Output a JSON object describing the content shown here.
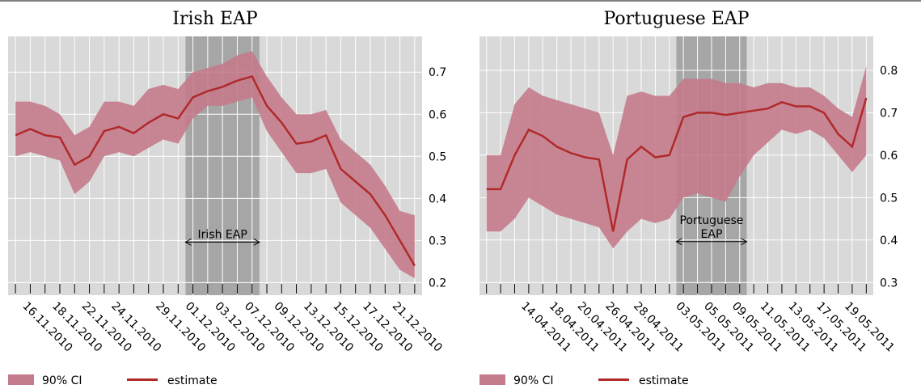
{
  "chart_data": [
    {
      "type": "line",
      "title": "Irish EAP",
      "categories": [
        null,
        "16.11.2010",
        null,
        "18.11.2010",
        null,
        "22.11.2010",
        null,
        "24.11.2010",
        null,
        null,
        "29.11.2010",
        null,
        "01.12.2010",
        null,
        "03.12.2010",
        null,
        "07.12.2010",
        null,
        "09.12.2010",
        null,
        "13.12.2010",
        null,
        "15.12.2010",
        null,
        "17.12.2010",
        null,
        "21.12.2010",
        null
      ],
      "series": [
        {
          "name": "90% CI",
          "color": "#c47b8c",
          "upper": [
            0.63,
            0.63,
            0.62,
            0.6,
            0.55,
            0.57,
            0.63,
            0.63,
            0.62,
            0.66,
            0.67,
            0.66,
            0.7,
            0.71,
            0.72,
            0.74,
            0.75,
            0.69,
            0.64,
            0.6,
            0.6,
            0.61,
            0.54,
            0.51,
            0.48,
            0.43,
            0.37,
            0.36
          ],
          "lower": [
            0.5,
            0.51,
            0.5,
            0.49,
            0.41,
            0.44,
            0.5,
            0.51,
            0.5,
            0.52,
            0.54,
            0.53,
            0.59,
            0.62,
            0.62,
            0.63,
            0.64,
            0.56,
            0.51,
            0.46,
            0.46,
            0.47,
            0.39,
            0.36,
            0.33,
            0.28,
            0.23,
            0.21
          ]
        },
        {
          "name": "estimate",
          "color": "#b02a2a",
          "values": [
            0.55,
            0.565,
            0.55,
            0.545,
            0.48,
            0.5,
            0.56,
            0.57,
            0.555,
            0.58,
            0.6,
            0.59,
            0.64,
            0.655,
            0.665,
            0.68,
            0.69,
            0.62,
            0.58,
            0.53,
            0.535,
            0.55,
            0.47,
            0.44,
            0.41,
            0.36,
            0.3,
            0.24
          ]
        }
      ],
      "ylim": [
        0.17,
        0.785
      ],
      "yticks": [
        0.2,
        0.3,
        0.4,
        0.5,
        0.6,
        0.7
      ],
      "grid": true,
      "annotation": {
        "lines": [
          "Irish EAP"
        ],
        "span": [
          "01.12.2010",
          "07.12.2010"
        ]
      }
    },
    {
      "type": "line",
      "title": "Portuguese EAP",
      "categories": [
        null,
        null,
        null,
        "14.04.2011",
        null,
        "18.04.2011",
        null,
        "20.04.2011",
        null,
        "26.04.2011",
        null,
        "28.04.2011",
        null,
        null,
        "03.05.2011",
        null,
        "05.05.2011",
        null,
        "09.05.2011",
        null,
        "11.05.2011",
        null,
        "13.05.2011",
        null,
        "17.05.2011",
        null,
        "19.05.2011",
        null
      ],
      "series": [
        {
          "name": "90% CI",
          "color": "#c47b8c",
          "upper": [
            0.6,
            0.6,
            0.72,
            0.76,
            0.74,
            0.73,
            0.72,
            0.71,
            0.7,
            0.6,
            0.74,
            0.75,
            0.74,
            0.74,
            0.78,
            0.78,
            0.78,
            0.77,
            0.77,
            0.76,
            0.77,
            0.77,
            0.76,
            0.76,
            0.74,
            0.71,
            0.69,
            0.81
          ],
          "lower": [
            0.42,
            0.42,
            0.45,
            0.5,
            0.48,
            0.46,
            0.45,
            0.44,
            0.43,
            0.38,
            0.42,
            0.45,
            0.44,
            0.45,
            0.5,
            0.51,
            0.5,
            0.49,
            0.55,
            0.6,
            0.63,
            0.66,
            0.65,
            0.66,
            0.64,
            0.6,
            0.56,
            0.6
          ]
        },
        {
          "name": "estimate",
          "color": "#b02a2a",
          "values": [
            0.52,
            0.52,
            0.6,
            0.66,
            0.645,
            0.62,
            0.605,
            0.595,
            0.59,
            0.42,
            0.59,
            0.62,
            0.595,
            0.6,
            0.69,
            0.7,
            0.7,
            0.695,
            0.7,
            0.705,
            0.71,
            0.725,
            0.715,
            0.715,
            0.7,
            0.65,
            0.62,
            0.735
          ]
        }
      ],
      "ylim": [
        0.27,
        0.88
      ],
      "yticks": [
        0.3,
        0.4,
        0.5,
        0.6,
        0.7,
        0.8
      ],
      "grid": true,
      "annotation": {
        "lines": [
          "Portuguese",
          "EAP"
        ],
        "span": [
          "03.05.2011",
          "09.05.2011"
        ]
      }
    }
  ]
}
